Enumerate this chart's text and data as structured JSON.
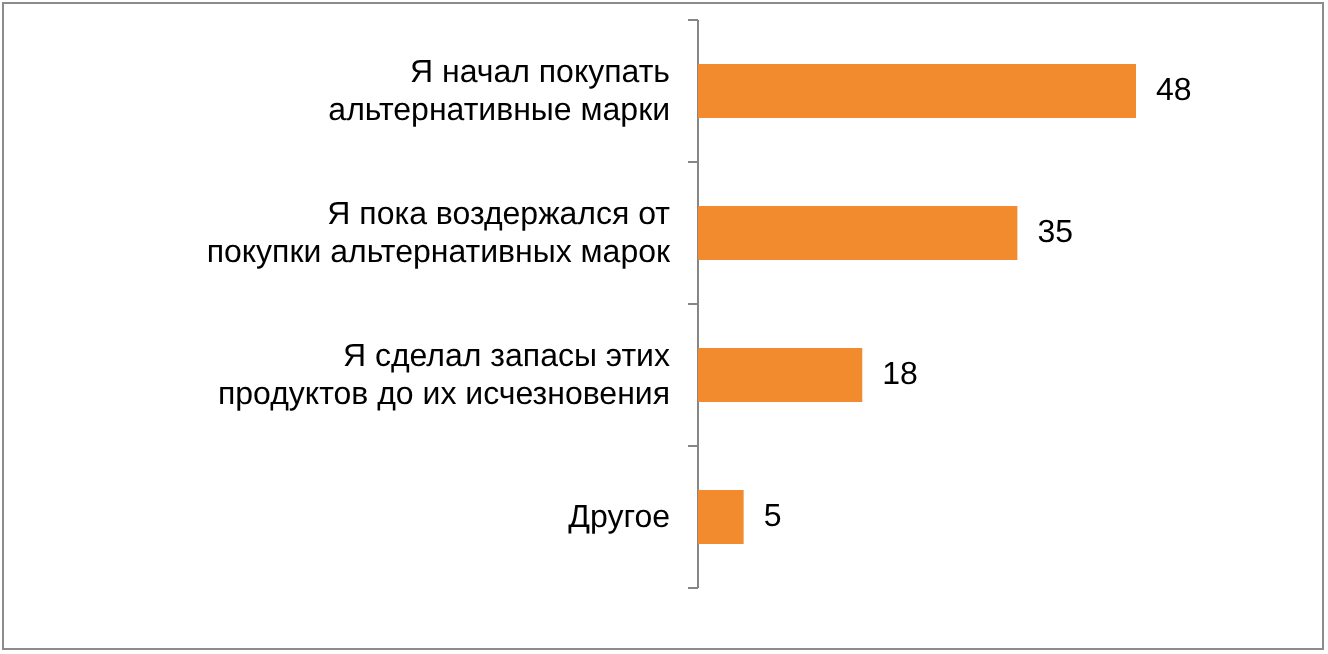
{
  "chart_data": {
    "type": "bar",
    "orientation": "horizontal",
    "categories": [
      "Я начал покупать альтернативные марки",
      "Я пока воздержался от покупки альтернативных марок",
      "Я сделал запасы этих продуктов до их исчезновения",
      "Другое"
    ],
    "values": [
      48,
      35,
      18,
      5
    ],
    "color": "#f28a2e",
    "data_labels": true
  }
}
